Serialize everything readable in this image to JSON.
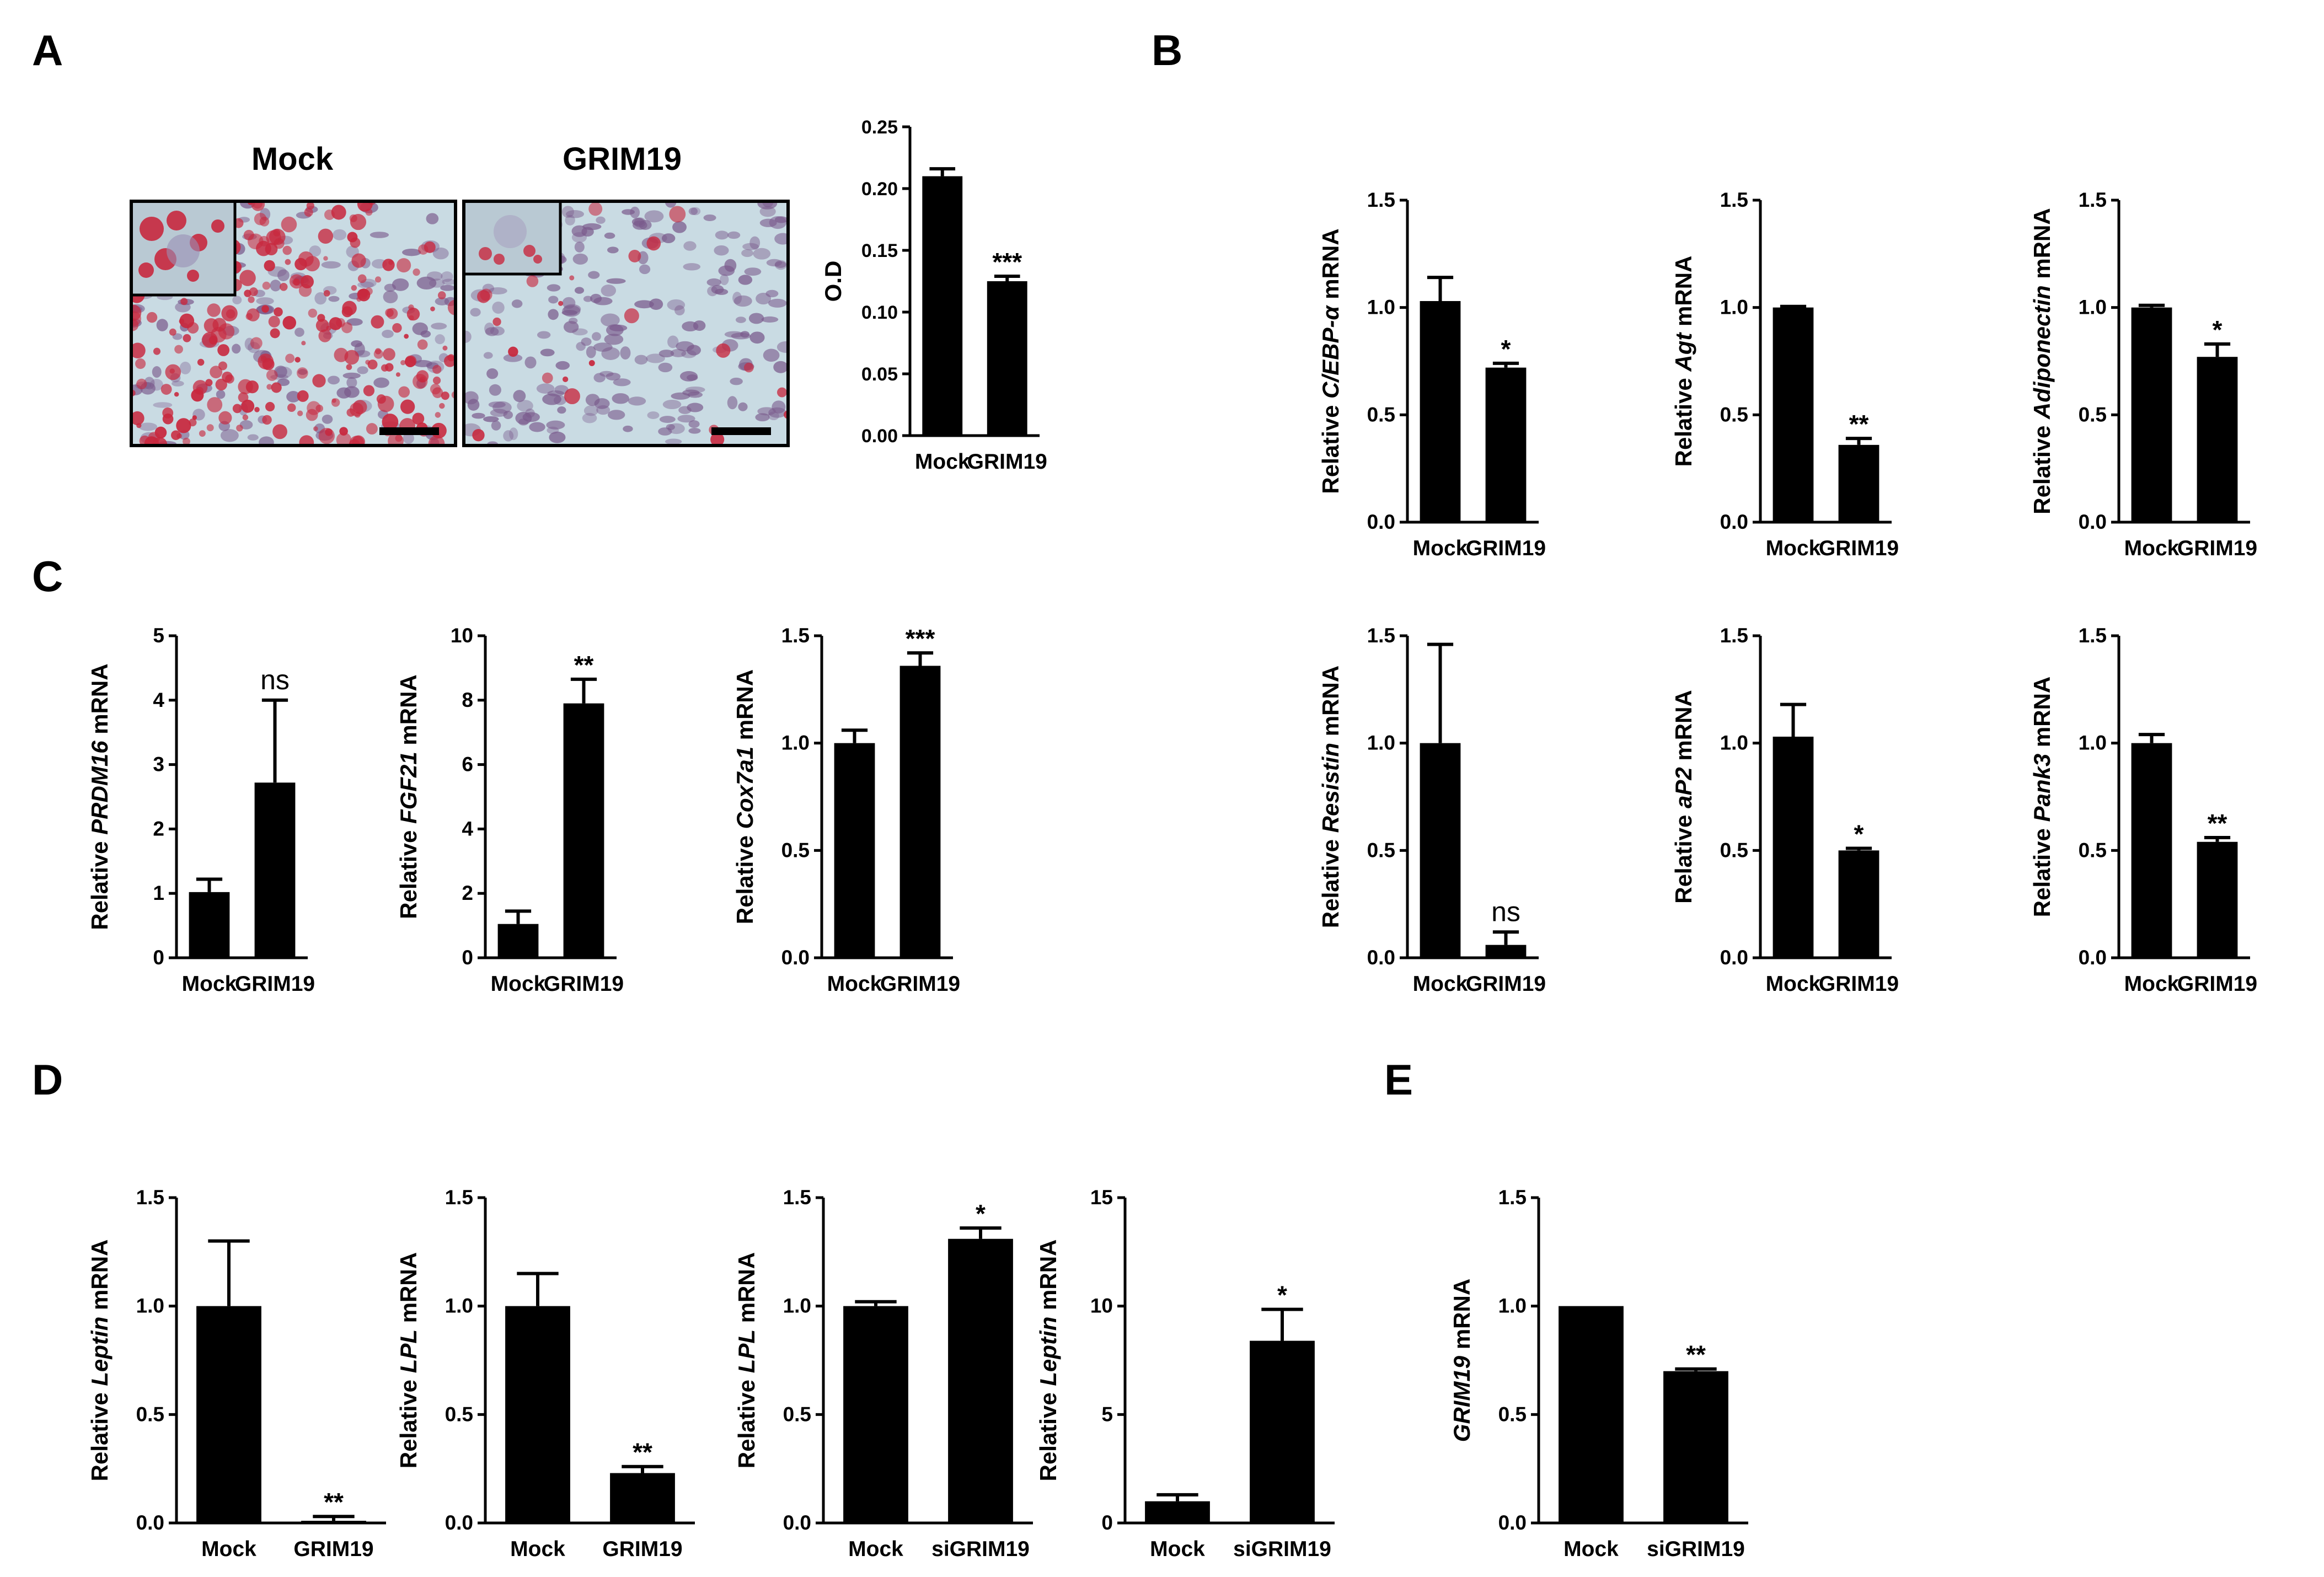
{
  "panel_labels": [
    "A",
    "B",
    "C",
    "D",
    "E"
  ],
  "micrograph": {
    "titles": [
      "Mock",
      "GRIM19"
    ],
    "stain_color": "#c8283e",
    "background_color": "#c9dbe3",
    "nuclei_color": "#7a5a8c"
  },
  "chart_data": [
    {
      "id": "A-od",
      "type": "bar",
      "categories": [
        "Mock",
        "GRIM19"
      ],
      "values": [
        0.21,
        0.125
      ],
      "errors": [
        0.006,
        0.004
      ],
      "significance": [
        "",
        "***"
      ],
      "ylabel": "O.D",
      "ylim": [
        0,
        0.25
      ],
      "ticks": [
        0.0,
        0.05,
        0.1,
        0.15,
        0.2,
        0.25
      ],
      "tick_labels": [
        "0.00",
        "0.05",
        "0.10",
        "0.15",
        "0.20",
        "0.25"
      ]
    },
    {
      "id": "B-cebpa",
      "type": "bar",
      "categories": [
        "Mock",
        "GRIM19"
      ],
      "values": [
        1.03,
        0.72
      ],
      "errors": [
        0.11,
        0.02
      ],
      "significance": [
        "",
        "*"
      ],
      "ylabel_prefix": "Relative",
      "ylabel_gene": "C/EBP-α",
      "ylabel_suffix": "mRNA",
      "ylim": [
        0,
        1.5
      ],
      "ticks": [
        0,
        0.5,
        1.0,
        1.5
      ],
      "tick_labels": [
        "0.0",
        "0.5",
        "1.0",
        "1.5"
      ]
    },
    {
      "id": "B-agt",
      "type": "bar",
      "categories": [
        "Mock",
        "GRIM19"
      ],
      "values": [
        1.0,
        0.36
      ],
      "errors": [
        0.005,
        0.03
      ],
      "significance": [
        "",
        "**"
      ],
      "ylabel_prefix": "Relative",
      "ylabel_gene": "Agt",
      "ylabel_suffix": "mRNA",
      "ylim": [
        0,
        1.5
      ],
      "ticks": [
        0,
        0.5,
        1.0,
        1.5
      ],
      "tick_labels": [
        "0.0",
        "0.5",
        "1.0",
        "1.5"
      ]
    },
    {
      "id": "B-adiponectin",
      "type": "bar",
      "categories": [
        "Mock",
        "GRIM19"
      ],
      "values": [
        1.0,
        0.77
      ],
      "errors": [
        0.01,
        0.06
      ],
      "significance": [
        "",
        "*"
      ],
      "ylabel_prefix": "Relative",
      "ylabel_gene": "Adiponectin",
      "ylabel_suffix": "mRNA",
      "ylim": [
        0,
        1.5
      ],
      "ticks": [
        0,
        0.5,
        1.0,
        1.5
      ],
      "tick_labels": [
        "0.0",
        "0.5",
        "1.0",
        "1.5"
      ]
    },
    {
      "id": "B-resistin",
      "type": "bar",
      "categories": [
        "Mock",
        "GRIM19"
      ],
      "values": [
        1.0,
        0.06
      ],
      "errors": [
        0.46,
        0.06
      ],
      "significance": [
        "",
        "ns"
      ],
      "ylabel_prefix": "Relative",
      "ylabel_gene": "Resistin",
      "ylabel_suffix": "mRNA",
      "ylim": [
        0,
        1.5
      ],
      "ticks": [
        0,
        0.5,
        1.0,
        1.5
      ],
      "tick_labels": [
        "0.0",
        "0.5",
        "1.0",
        "1.5"
      ]
    },
    {
      "id": "B-ap2",
      "type": "bar",
      "categories": [
        "Mock",
        "GRIM19"
      ],
      "values": [
        1.03,
        0.5
      ],
      "errors": [
        0.15,
        0.01
      ],
      "significance": [
        "",
        "*"
      ],
      "ylabel_prefix": "Relative",
      "ylabel_gene": "aP2",
      "ylabel_suffix": "mRNA",
      "ylim": [
        0,
        1.5
      ],
      "ticks": [
        0,
        0.5,
        1.0,
        1.5
      ],
      "tick_labels": [
        "0.0",
        "0.5",
        "1.0",
        "1.5"
      ]
    },
    {
      "id": "B-pank3",
      "type": "bar",
      "categories": [
        "Mock",
        "GRIM19"
      ],
      "values": [
        1.0,
        0.54
      ],
      "errors": [
        0.04,
        0.02
      ],
      "significance": [
        "",
        "**"
      ],
      "ylabel_prefix": "Relative",
      "ylabel_gene": "Pank3",
      "ylabel_suffix": "mRNA",
      "ylim": [
        0,
        1.5
      ],
      "ticks": [
        0,
        0.5,
        1.0,
        1.5
      ],
      "tick_labels": [
        "0.0",
        "0.5",
        "1.0",
        "1.5"
      ]
    },
    {
      "id": "C-prdm16",
      "type": "bar",
      "categories": [
        "Mock",
        "GRIM19"
      ],
      "values": [
        1.02,
        2.72
      ],
      "errors": [
        0.2,
        1.28
      ],
      "significance": [
        "",
        "ns"
      ],
      "ylabel_prefix": "Relative",
      "ylabel_gene": "PRDM16",
      "ylabel_suffix": "mRNA",
      "ylim": [
        0,
        5
      ],
      "ticks": [
        0,
        1,
        2,
        3,
        4,
        5
      ],
      "tick_labels": [
        "0",
        "1",
        "2",
        "3",
        "4",
        "5"
      ]
    },
    {
      "id": "C-fgf21",
      "type": "bar",
      "categories": [
        "Mock",
        "GRIM19"
      ],
      "values": [
        1.05,
        7.9
      ],
      "errors": [
        0.4,
        0.75
      ],
      "significance": [
        "",
        "**"
      ],
      "ylabel_prefix": "Relative",
      "ylabel_gene": "FGF21",
      "ylabel_suffix": "mRNA",
      "ylim": [
        0,
        10
      ],
      "ticks": [
        0,
        2,
        4,
        6,
        8,
        10
      ],
      "tick_labels": [
        "0",
        "2",
        "4",
        "6",
        "8",
        "10"
      ]
    },
    {
      "id": "C-cox7a1",
      "type": "bar",
      "categories": [
        "Mock",
        "GRIM19"
      ],
      "values": [
        1.0,
        1.36
      ],
      "errors": [
        0.06,
        0.06
      ],
      "significance": [
        "",
        "***"
      ],
      "ylabel_prefix": "Relative",
      "ylabel_gene": "Cox7a1",
      "ylabel_suffix": "mRNA",
      "ylim": [
        0,
        1.5
      ],
      "ticks": [
        0,
        0.5,
        1.0,
        1.5
      ],
      "tick_labels": [
        "0.0",
        "0.5",
        "1.0",
        "1.5"
      ]
    },
    {
      "id": "D-leptin",
      "type": "bar",
      "categories": [
        "Mock",
        "GRIM19"
      ],
      "values": [
        1.0,
        0.01
      ],
      "errors": [
        0.3,
        0.02
      ],
      "significance": [
        "",
        "**"
      ],
      "ylabel_prefix": "Relative",
      "ylabel_gene": "Leptin",
      "ylabel_suffix": "mRNA",
      "ylim": [
        0,
        1.5
      ],
      "ticks": [
        0,
        0.5,
        1.0,
        1.5
      ],
      "tick_labels": [
        "0.0",
        "0.5",
        "1.0",
        "1.5"
      ]
    },
    {
      "id": "D-lpl",
      "type": "bar",
      "categories": [
        "Mock",
        "GRIM19"
      ],
      "values": [
        1.0,
        0.23
      ],
      "errors": [
        0.15,
        0.03
      ],
      "significance": [
        "",
        "**"
      ],
      "ylabel_prefix": "Relative",
      "ylabel_gene": "LPL",
      "ylabel_suffix": "mRNA",
      "ylim": [
        0,
        1.5
      ],
      "ticks": [
        0,
        0.5,
        1.0,
        1.5
      ],
      "tick_labels": [
        "0.0",
        "0.5",
        "1.0",
        "1.5"
      ]
    },
    {
      "id": "D-lpl-si",
      "type": "bar",
      "categories": [
        "Mock",
        "siGRIM19"
      ],
      "values": [
        1.0,
        1.31
      ],
      "errors": [
        0.02,
        0.05
      ],
      "significance": [
        "",
        "*"
      ],
      "ylabel_prefix": "Relative",
      "ylabel_gene": "LPL",
      "ylabel_suffix": "mRNA",
      "ylim": [
        0,
        1.5
      ],
      "ticks": [
        0,
        0.5,
        1.0,
        1.5
      ],
      "tick_labels": [
        "0.0",
        "0.5",
        "1.0",
        "1.5"
      ]
    },
    {
      "id": "D-leptin-si",
      "type": "bar",
      "categories": [
        "Mock",
        "siGRIM19"
      ],
      "values": [
        1.0,
        8.4
      ],
      "errors": [
        0.3,
        1.45
      ],
      "significance": [
        "",
        "*"
      ],
      "ylabel_prefix": "Relative",
      "ylabel_gene": "Leptin",
      "ylabel_suffix": "mRNA",
      "ylim": [
        0,
        15
      ],
      "ticks": [
        0,
        5,
        10,
        15
      ],
      "tick_labels": [
        "0",
        "5",
        "10",
        "15"
      ]
    },
    {
      "id": "E-grim19",
      "type": "bar",
      "categories": [
        "Mock",
        "siGRIM19"
      ],
      "values": [
        1.0,
        0.7
      ],
      "errors": [
        0,
        0.01
      ],
      "significance": [
        "",
        "**"
      ],
      "ylabel_prefix": "",
      "ylabel_gene": "GRIM19",
      "ylabel_suffix": "mRNA",
      "ylim": [
        0,
        1.5
      ],
      "ticks": [
        0,
        0.5,
        1.0,
        1.5
      ],
      "tick_labels": [
        "0.0",
        "0.5",
        "1.0",
        "1.5"
      ]
    }
  ]
}
